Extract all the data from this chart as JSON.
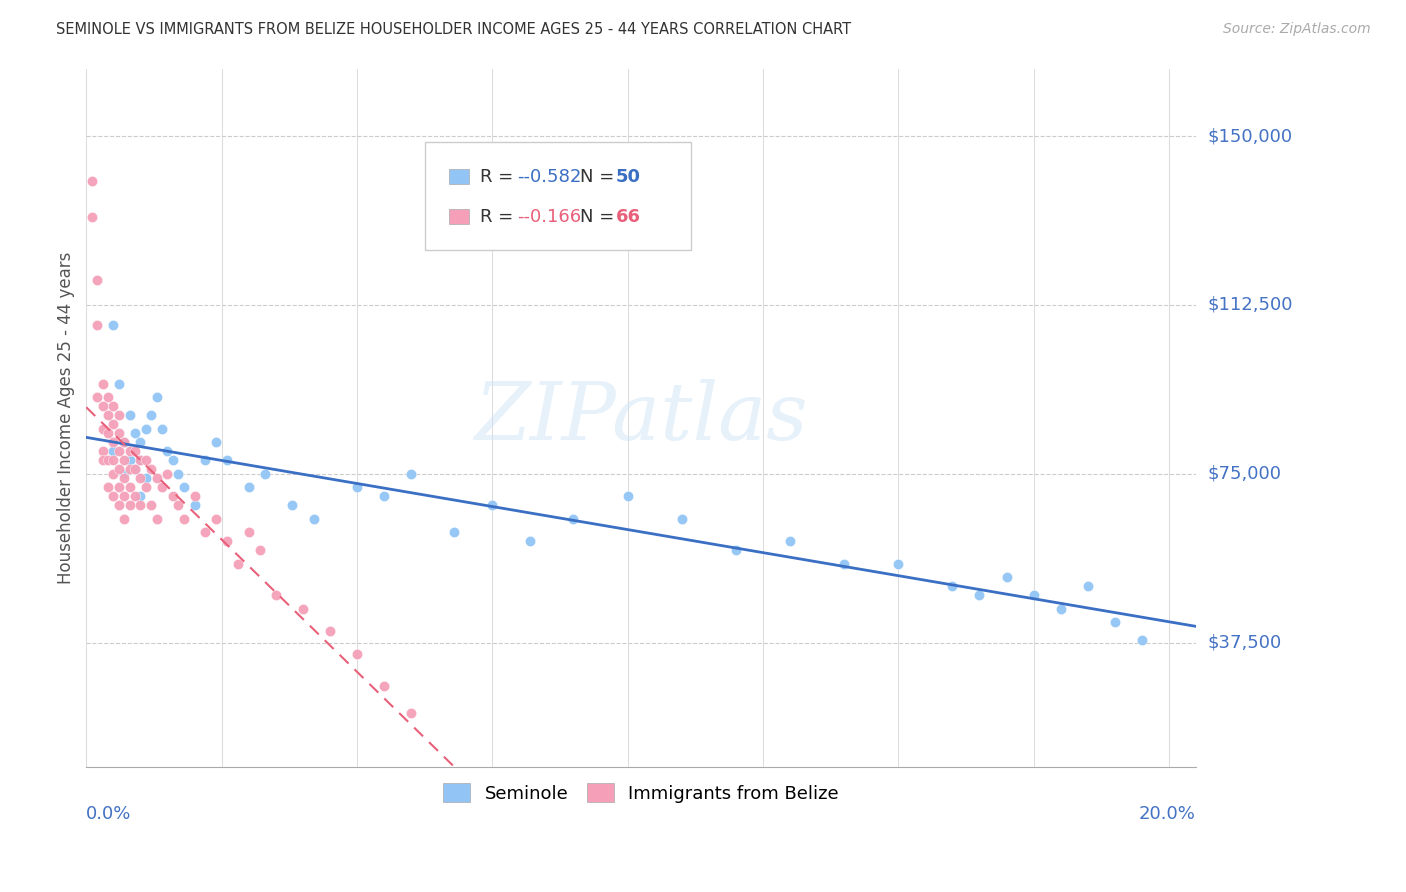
{
  "title": "SEMINOLE VS IMMIGRANTS FROM BELIZE HOUSEHOLDER INCOME AGES 25 - 44 YEARS CORRELATION CHART",
  "source": "Source: ZipAtlas.com",
  "ylabel": "Householder Income Ages 25 - 44 years",
  "yticks": [
    37500,
    75000,
    112500,
    150000
  ],
  "ytick_labels": [
    "$37,500",
    "$75,000",
    "$112,500",
    "$150,000"
  ],
  "xlim": [
    0.0,
    0.205
  ],
  "ylim": [
    10000,
    165000
  ],
  "x_tick_positions": [
    0.0,
    0.025,
    0.05,
    0.075,
    0.1,
    0.125,
    0.15,
    0.175,
    0.2
  ],
  "seminole_color": "#92c5f5",
  "belize_color": "#f5a0b8",
  "regression_seminole_color": "#3a6fc4",
  "regression_belize_color": "#e8607a",
  "legend_r_seminole": "-0.582",
  "legend_n_seminole": "50",
  "legend_r_belize": "-0.166",
  "legend_n_belize": "66",
  "watermark": "ZIPatlas",
  "seminole_x": [
    0.005,
    0.005,
    0.006,
    0.007,
    0.007,
    0.008,
    0.008,
    0.009,
    0.009,
    0.01,
    0.01,
    0.01,
    0.011,
    0.011,
    0.012,
    0.013,
    0.014,
    0.015,
    0.016,
    0.017,
    0.018,
    0.02,
    0.022,
    0.024,
    0.026,
    0.03,
    0.033,
    0.038,
    0.042,
    0.05,
    0.055,
    0.06,
    0.068,
    0.075,
    0.082,
    0.09,
    0.1,
    0.11,
    0.12,
    0.13,
    0.14,
    0.15,
    0.16,
    0.165,
    0.17,
    0.175,
    0.18,
    0.185,
    0.19,
    0.195
  ],
  "seminole_y": [
    108000,
    80000,
    95000,
    82000,
    75000,
    88000,
    78000,
    84000,
    76000,
    82000,
    78000,
    70000,
    85000,
    74000,
    88000,
    92000,
    85000,
    80000,
    78000,
    75000,
    72000,
    68000,
    78000,
    82000,
    78000,
    72000,
    75000,
    68000,
    65000,
    72000,
    70000,
    75000,
    62000,
    68000,
    60000,
    65000,
    70000,
    65000,
    58000,
    60000,
    55000,
    55000,
    50000,
    48000,
    52000,
    48000,
    45000,
    50000,
    42000,
    38000
  ],
  "belize_x": [
    0.001,
    0.001,
    0.002,
    0.002,
    0.002,
    0.003,
    0.003,
    0.003,
    0.003,
    0.003,
    0.004,
    0.004,
    0.004,
    0.004,
    0.004,
    0.005,
    0.005,
    0.005,
    0.005,
    0.005,
    0.005,
    0.006,
    0.006,
    0.006,
    0.006,
    0.006,
    0.006,
    0.007,
    0.007,
    0.007,
    0.007,
    0.007,
    0.008,
    0.008,
    0.008,
    0.008,
    0.009,
    0.009,
    0.009,
    0.01,
    0.01,
    0.01,
    0.011,
    0.011,
    0.012,
    0.012,
    0.013,
    0.013,
    0.014,
    0.015,
    0.016,
    0.017,
    0.018,
    0.02,
    0.022,
    0.024,
    0.026,
    0.028,
    0.03,
    0.032,
    0.035,
    0.04,
    0.045,
    0.05,
    0.055,
    0.06
  ],
  "belize_y": [
    140000,
    132000,
    118000,
    108000,
    92000,
    95000,
    90000,
    85000,
    80000,
    78000,
    92000,
    88000,
    84000,
    78000,
    72000,
    90000,
    86000,
    82000,
    78000,
    75000,
    70000,
    88000,
    84000,
    80000,
    76000,
    72000,
    68000,
    82000,
    78000,
    74000,
    70000,
    65000,
    80000,
    76000,
    72000,
    68000,
    80000,
    76000,
    70000,
    78000,
    74000,
    68000,
    78000,
    72000,
    76000,
    68000,
    74000,
    65000,
    72000,
    75000,
    70000,
    68000,
    65000,
    70000,
    62000,
    65000,
    60000,
    55000,
    62000,
    58000,
    48000,
    45000,
    40000,
    35000,
    28000,
    22000
  ]
}
